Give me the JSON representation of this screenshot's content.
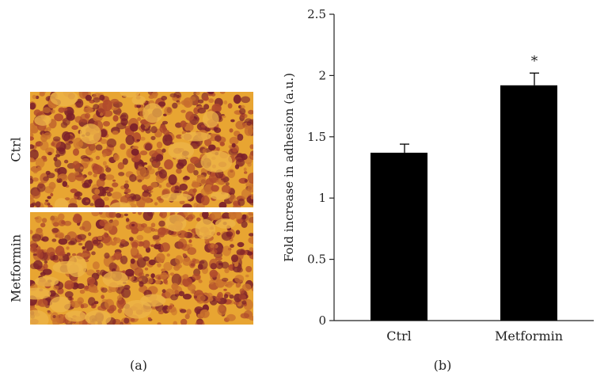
{
  "panel_a": {
    "row_labels": [
      "Ctrl",
      "Metformin"
    ],
    "caption": "(a)"
  },
  "panel_b": {
    "caption": "(b)"
  },
  "chart_data": {
    "type": "bar",
    "categories": [
      "Ctrl",
      "Metformin"
    ],
    "values": [
      1.37,
      1.92
    ],
    "error": [
      0.07,
      0.1
    ],
    "annotations": [
      "",
      "*"
    ],
    "ylabel": "Fold increase in adhesion (a.u.)",
    "xlabel": "",
    "ylim": [
      0,
      2.5
    ],
    "yticks": [
      0,
      0.5,
      1,
      1.5,
      2,
      2.5
    ],
    "ytick_labels": [
      "0",
      "0.5",
      "1",
      "1.5",
      "2",
      "2.5"
    ],
    "grid": false,
    "bar_color": "#000000"
  },
  "colors": {
    "cell_background": "#e8a532",
    "cell_dark": "#7a1f2a",
    "cell_mid": "#b04a2c"
  }
}
